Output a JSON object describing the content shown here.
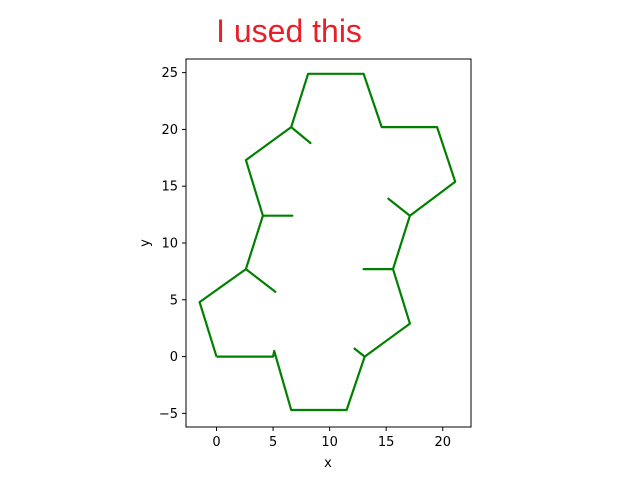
{
  "annotation": {
    "text": "I used this",
    "color": "#e8202a"
  },
  "chart_data": {
    "type": "line",
    "title": "",
    "xlabel": "x",
    "ylabel": "y",
    "xlim": [
      -2.7,
      22.5
    ],
    "ylim": [
      -6.2,
      26.2
    ],
    "xticks": [
      0,
      5,
      10,
      15,
      20
    ],
    "yticks": [
      -5,
      0,
      5,
      10,
      15,
      20,
      25
    ],
    "grid": false,
    "legend": "none",
    "line_color": "#008000",
    "series": [
      {
        "values": [
          [
            0,
            0
          ],
          [
            5,
            0
          ],
          [
            5.1,
            0.5
          ],
          [
            6.6,
            -4.7
          ],
          [
            11.5,
            -4.7
          ],
          [
            13.1,
            0
          ],
          [
            12.2,
            0.7
          ],
          [
            13.1,
            0
          ],
          [
            17.1,
            2.9
          ],
          [
            15.6,
            7.7
          ],
          [
            13.0,
            7.7
          ],
          [
            15.6,
            7.7
          ],
          [
            17.1,
            12.4
          ],
          [
            15.2,
            13.9
          ],
          [
            17.1,
            12.4
          ],
          [
            21.1,
            15.4
          ],
          [
            19.5,
            20.2
          ],
          [
            14.6,
            20.2
          ],
          [
            13.0,
            24.9
          ],
          [
            8.1,
            24.9
          ],
          [
            6.6,
            20.2
          ],
          [
            8.3,
            18.8
          ],
          [
            6.6,
            20.2
          ],
          [
            2.6,
            17.3
          ],
          [
            4.1,
            12.4
          ],
          [
            6.7,
            12.4
          ],
          [
            4.1,
            12.4
          ],
          [
            2.6,
            7.7
          ],
          [
            5.2,
            5.7
          ],
          [
            2.6,
            7.7
          ],
          [
            -1.5,
            4.8
          ],
          [
            0,
            0
          ]
        ]
      }
    ]
  }
}
